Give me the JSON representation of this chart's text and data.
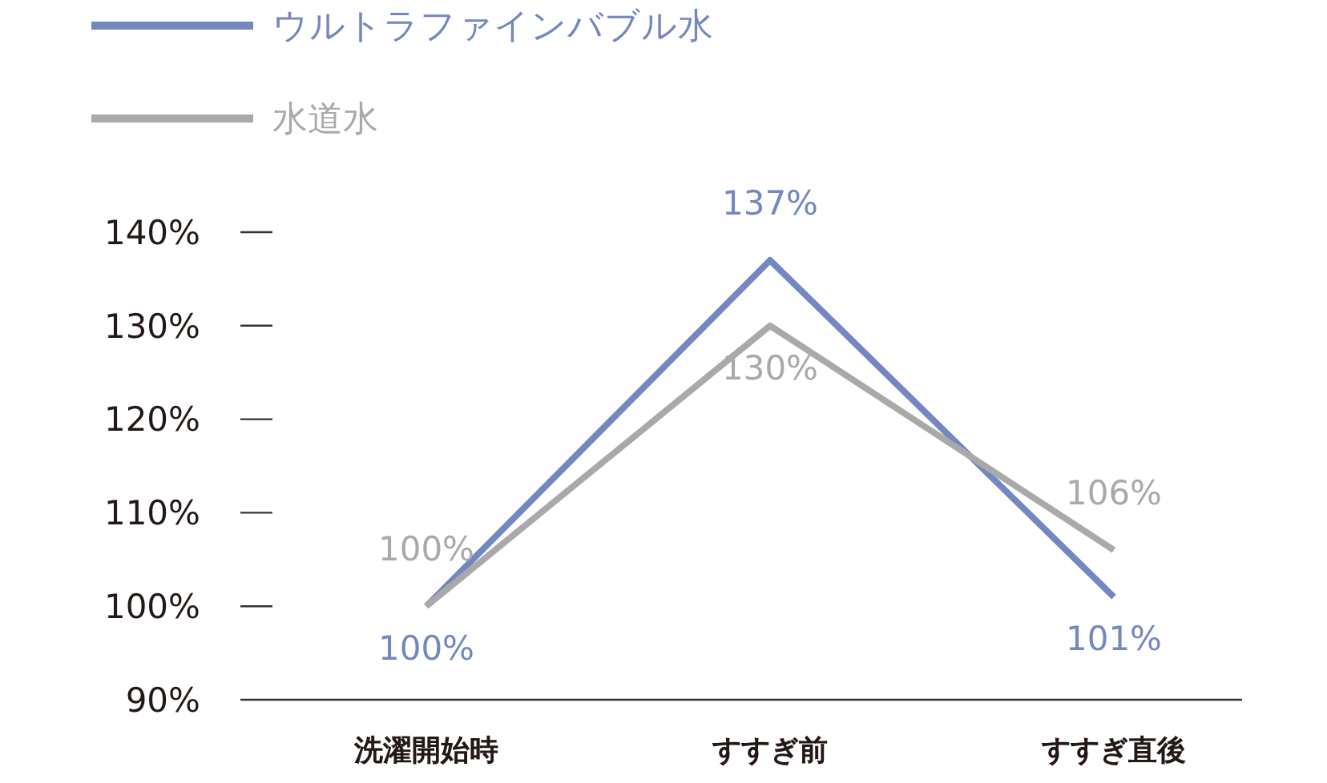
{
  "chart_data": {
    "type": "line",
    "categories": [
      "洗濯開始時",
      "すすぎ前",
      "すすぎ直後"
    ],
    "series": [
      {
        "name": "ウルトラファインバブル水",
        "color": "#7387c1",
        "values": [
          100,
          137,
          101
        ],
        "value_labels": [
          "100%",
          "137%",
          "101%"
        ]
      },
      {
        "name": "水道水",
        "color": "#a9a9a9",
        "values": [
          100,
          130,
          106
        ],
        "value_labels": [
          "100%",
          "130%",
          "106%"
        ]
      }
    ],
    "ylim": [
      90,
      140
    ],
    "yticks": [
      {
        "value": 90,
        "label": "90%"
      },
      {
        "value": 100,
        "label": "100%"
      },
      {
        "value": 110,
        "label": "110%"
      },
      {
        "value": 120,
        "label": "120%"
      },
      {
        "value": 130,
        "label": "130%"
      },
      {
        "value": 140,
        "label": "140%"
      }
    ],
    "grid": false,
    "legend": "top left",
    "marker": "none",
    "line_style": "solid"
  }
}
